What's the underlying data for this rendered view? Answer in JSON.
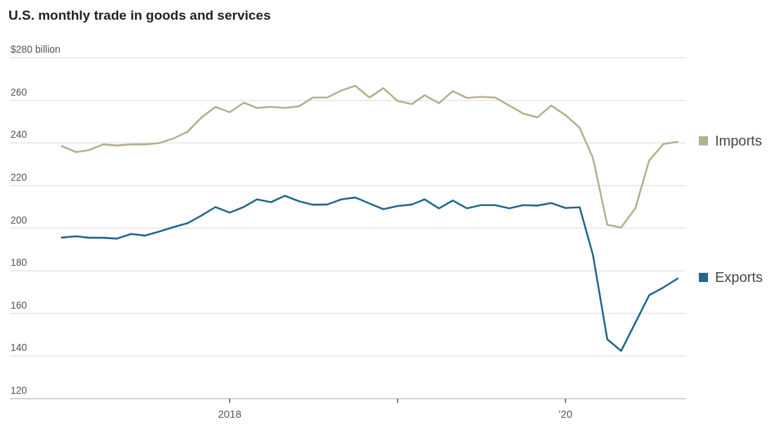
{
  "chart_data": {
    "type": "line",
    "title": "U.S. monthly trade in goods and services",
    "x": [
      "2017-01",
      "2017-02",
      "2017-03",
      "2017-04",
      "2017-05",
      "2017-06",
      "2017-07",
      "2017-08",
      "2017-09",
      "2017-10",
      "2017-11",
      "2017-12",
      "2018-01",
      "2018-02",
      "2018-03",
      "2018-04",
      "2018-05",
      "2018-06",
      "2018-07",
      "2018-08",
      "2018-09",
      "2018-10",
      "2018-11",
      "2018-12",
      "2019-01",
      "2019-02",
      "2019-03",
      "2019-04",
      "2019-05",
      "2019-06",
      "2019-07",
      "2019-08",
      "2019-09",
      "2019-10",
      "2019-11",
      "2019-12",
      "2020-01",
      "2020-02",
      "2020-03",
      "2020-04",
      "2020-05",
      "2020-06",
      "2020-07",
      "2020-08",
      "2020-09"
    ],
    "series": [
      {
        "name": "Imports",
        "color": "#b5b08a",
        "values": [
          238.5,
          235.7,
          236.6,
          239.3,
          238.8,
          239.3,
          239.3,
          239.9,
          242.1,
          245.2,
          252.0,
          256.9,
          254.4,
          258.9,
          256.4,
          256.9,
          256.4,
          257.2,
          261.3,
          261.3,
          264.6,
          266.8,
          261.3,
          265.7,
          259.7,
          258.2,
          262.4,
          258.6,
          264.3,
          261.1,
          261.6,
          261.3,
          257.5,
          253.8,
          252.0,
          257.5,
          253.1,
          247.1,
          232.8,
          201.6,
          200.3,
          209.3,
          231.7,
          239.5,
          240.5
        ]
      },
      {
        "name": "Exports",
        "color": "#22678e",
        "values": [
          195.6,
          196.2,
          195.5,
          195.5,
          195.1,
          197.3,
          196.5,
          198.4,
          200.5,
          202.3,
          206.0,
          209.9,
          207.3,
          210.0,
          213.5,
          212.2,
          215.2,
          212.6,
          211.0,
          211.1,
          213.5,
          214.4,
          211.6,
          208.9,
          210.4,
          211.1,
          213.5,
          209.3,
          213.0,
          209.3,
          210.8,
          210.8,
          209.3,
          210.8,
          210.6,
          211.8,
          209.5,
          209.8,
          187.3,
          147.9,
          142.4,
          155.6,
          168.5,
          172.2,
          176.4
        ]
      }
    ],
    "xlim": [
      "2016-09-10",
      "2020-09-18"
    ],
    "xticks": [
      {
        "value": "2018-01",
        "label": "2018"
      },
      {
        "value": "2019-01",
        "label": null
      },
      {
        "value": "2020-01",
        "label": "’20"
      }
    ],
    "ylim": [
      120,
      280
    ],
    "yticks": [
      120,
      140,
      160,
      180,
      200,
      220,
      240,
      260,
      {
        "value": 280,
        "label": "$280 billion"
      }
    ],
    "grid": "y",
    "legend": "right",
    "line_style": "solid",
    "marker": "none"
  }
}
